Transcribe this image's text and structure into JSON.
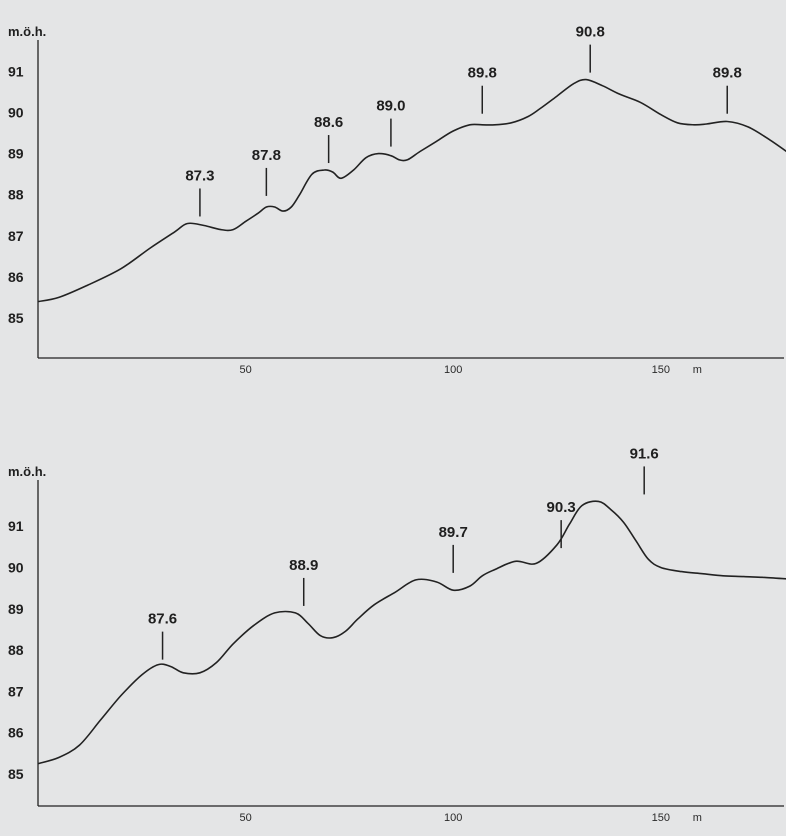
{
  "colors": {
    "background": "#e4e5e6",
    "ink": "#222222"
  },
  "chart_data": [
    {
      "type": "line",
      "title": "",
      "ylabel": "m.ö.h.",
      "xlabel": "m",
      "xlim": [
        0,
        181
      ],
      "ylim": [
        84,
        91.7
      ],
      "x_ticks": [
        50,
        100,
        150
      ],
      "y_ticks": [
        85,
        86,
        87,
        88,
        89,
        90,
        91
      ],
      "series": [
        {
          "x": [
            0,
            5,
            12,
            20,
            27,
            33,
            36,
            40,
            44,
            47,
            50,
            53,
            55,
            57,
            59,
            61,
            63,
            66,
            69,
            71,
            73,
            76,
            79,
            82,
            85,
            87,
            89,
            92,
            96,
            100,
            104,
            107,
            110,
            114,
            118,
            121,
            125,
            129,
            132,
            136,
            140,
            145,
            150,
            154,
            158,
            161,
            166,
            171,
            176,
            181
          ],
          "y": [
            85.4,
            85.5,
            85.8,
            86.2,
            86.7,
            87.1,
            87.3,
            87.25,
            87.15,
            87.15,
            87.35,
            87.55,
            87.7,
            87.7,
            87.6,
            87.7,
            88.0,
            88.5,
            88.6,
            88.55,
            88.4,
            88.6,
            88.9,
            89.0,
            88.95,
            88.85,
            88.85,
            89.05,
            89.3,
            89.55,
            89.7,
            89.7,
            89.7,
            89.75,
            89.9,
            90.1,
            90.4,
            90.7,
            90.8,
            90.65,
            90.45,
            90.25,
            89.95,
            89.75,
            89.7,
            89.72,
            89.78,
            89.65,
            89.35,
            89.0
          ]
        }
      ],
      "annotations": [
        {
          "label": "87.3",
          "x": 39,
          "y": 87.3
        },
        {
          "label": "87.8",
          "x": 55,
          "y": 87.8
        },
        {
          "label": "88.6",
          "x": 70,
          "y": 88.6
        },
        {
          "label": "89.0",
          "x": 85,
          "y": 89.0
        },
        {
          "label": "89.8",
          "x": 107,
          "y": 89.8
        },
        {
          "label": "90.8",
          "x": 133,
          "y": 90.8
        },
        {
          "label": "89.8",
          "x": 166,
          "y": 89.8
        }
      ]
    },
    {
      "type": "line",
      "title": "",
      "ylabel": "m.ö.h.",
      "xlabel": "m",
      "xlim": [
        0,
        181
      ],
      "ylim": [
        84.25,
        91.75
      ],
      "x_ticks": [
        50,
        100,
        150
      ],
      "y_ticks": [
        85,
        86,
        87,
        88,
        89,
        90,
        91
      ],
      "series": [
        {
          "x": [
            0,
            5,
            10,
            15,
            20,
            25,
            29,
            32,
            35,
            39,
            43,
            47,
            52,
            57,
            62,
            65,
            68,
            71,
            74,
            77,
            81,
            86,
            91,
            96,
            100,
            104,
            107,
            110,
            115,
            120,
            125,
            128,
            131,
            135,
            138,
            141,
            144,
            147,
            150,
            155,
            160,
            165,
            170,
            175,
            181
          ],
          "y": [
            85.25,
            85.4,
            85.7,
            86.3,
            86.9,
            87.4,
            87.65,
            87.6,
            87.45,
            87.45,
            87.7,
            88.15,
            88.6,
            88.9,
            88.9,
            88.65,
            88.35,
            88.3,
            88.45,
            88.75,
            89.1,
            89.4,
            89.7,
            89.65,
            89.45,
            89.55,
            89.8,
            89.95,
            90.15,
            90.1,
            90.55,
            91.05,
            91.5,
            91.6,
            91.4,
            91.1,
            90.65,
            90.2,
            90.0,
            89.9,
            89.85,
            89.8,
            89.78,
            89.76,
            89.72
          ]
        }
      ],
      "annotations": [
        {
          "label": "87.6",
          "x": 30,
          "y": 87.6
        },
        {
          "label": "88.9",
          "x": 64,
          "y": 88.9
        },
        {
          "label": "89.7",
          "x": 100,
          "y": 89.7
        },
        {
          "label": "90.3",
          "x": 126,
          "y": 90.3
        },
        {
          "label": "91.6",
          "x": 146,
          "y": 91.6
        }
      ]
    }
  ]
}
